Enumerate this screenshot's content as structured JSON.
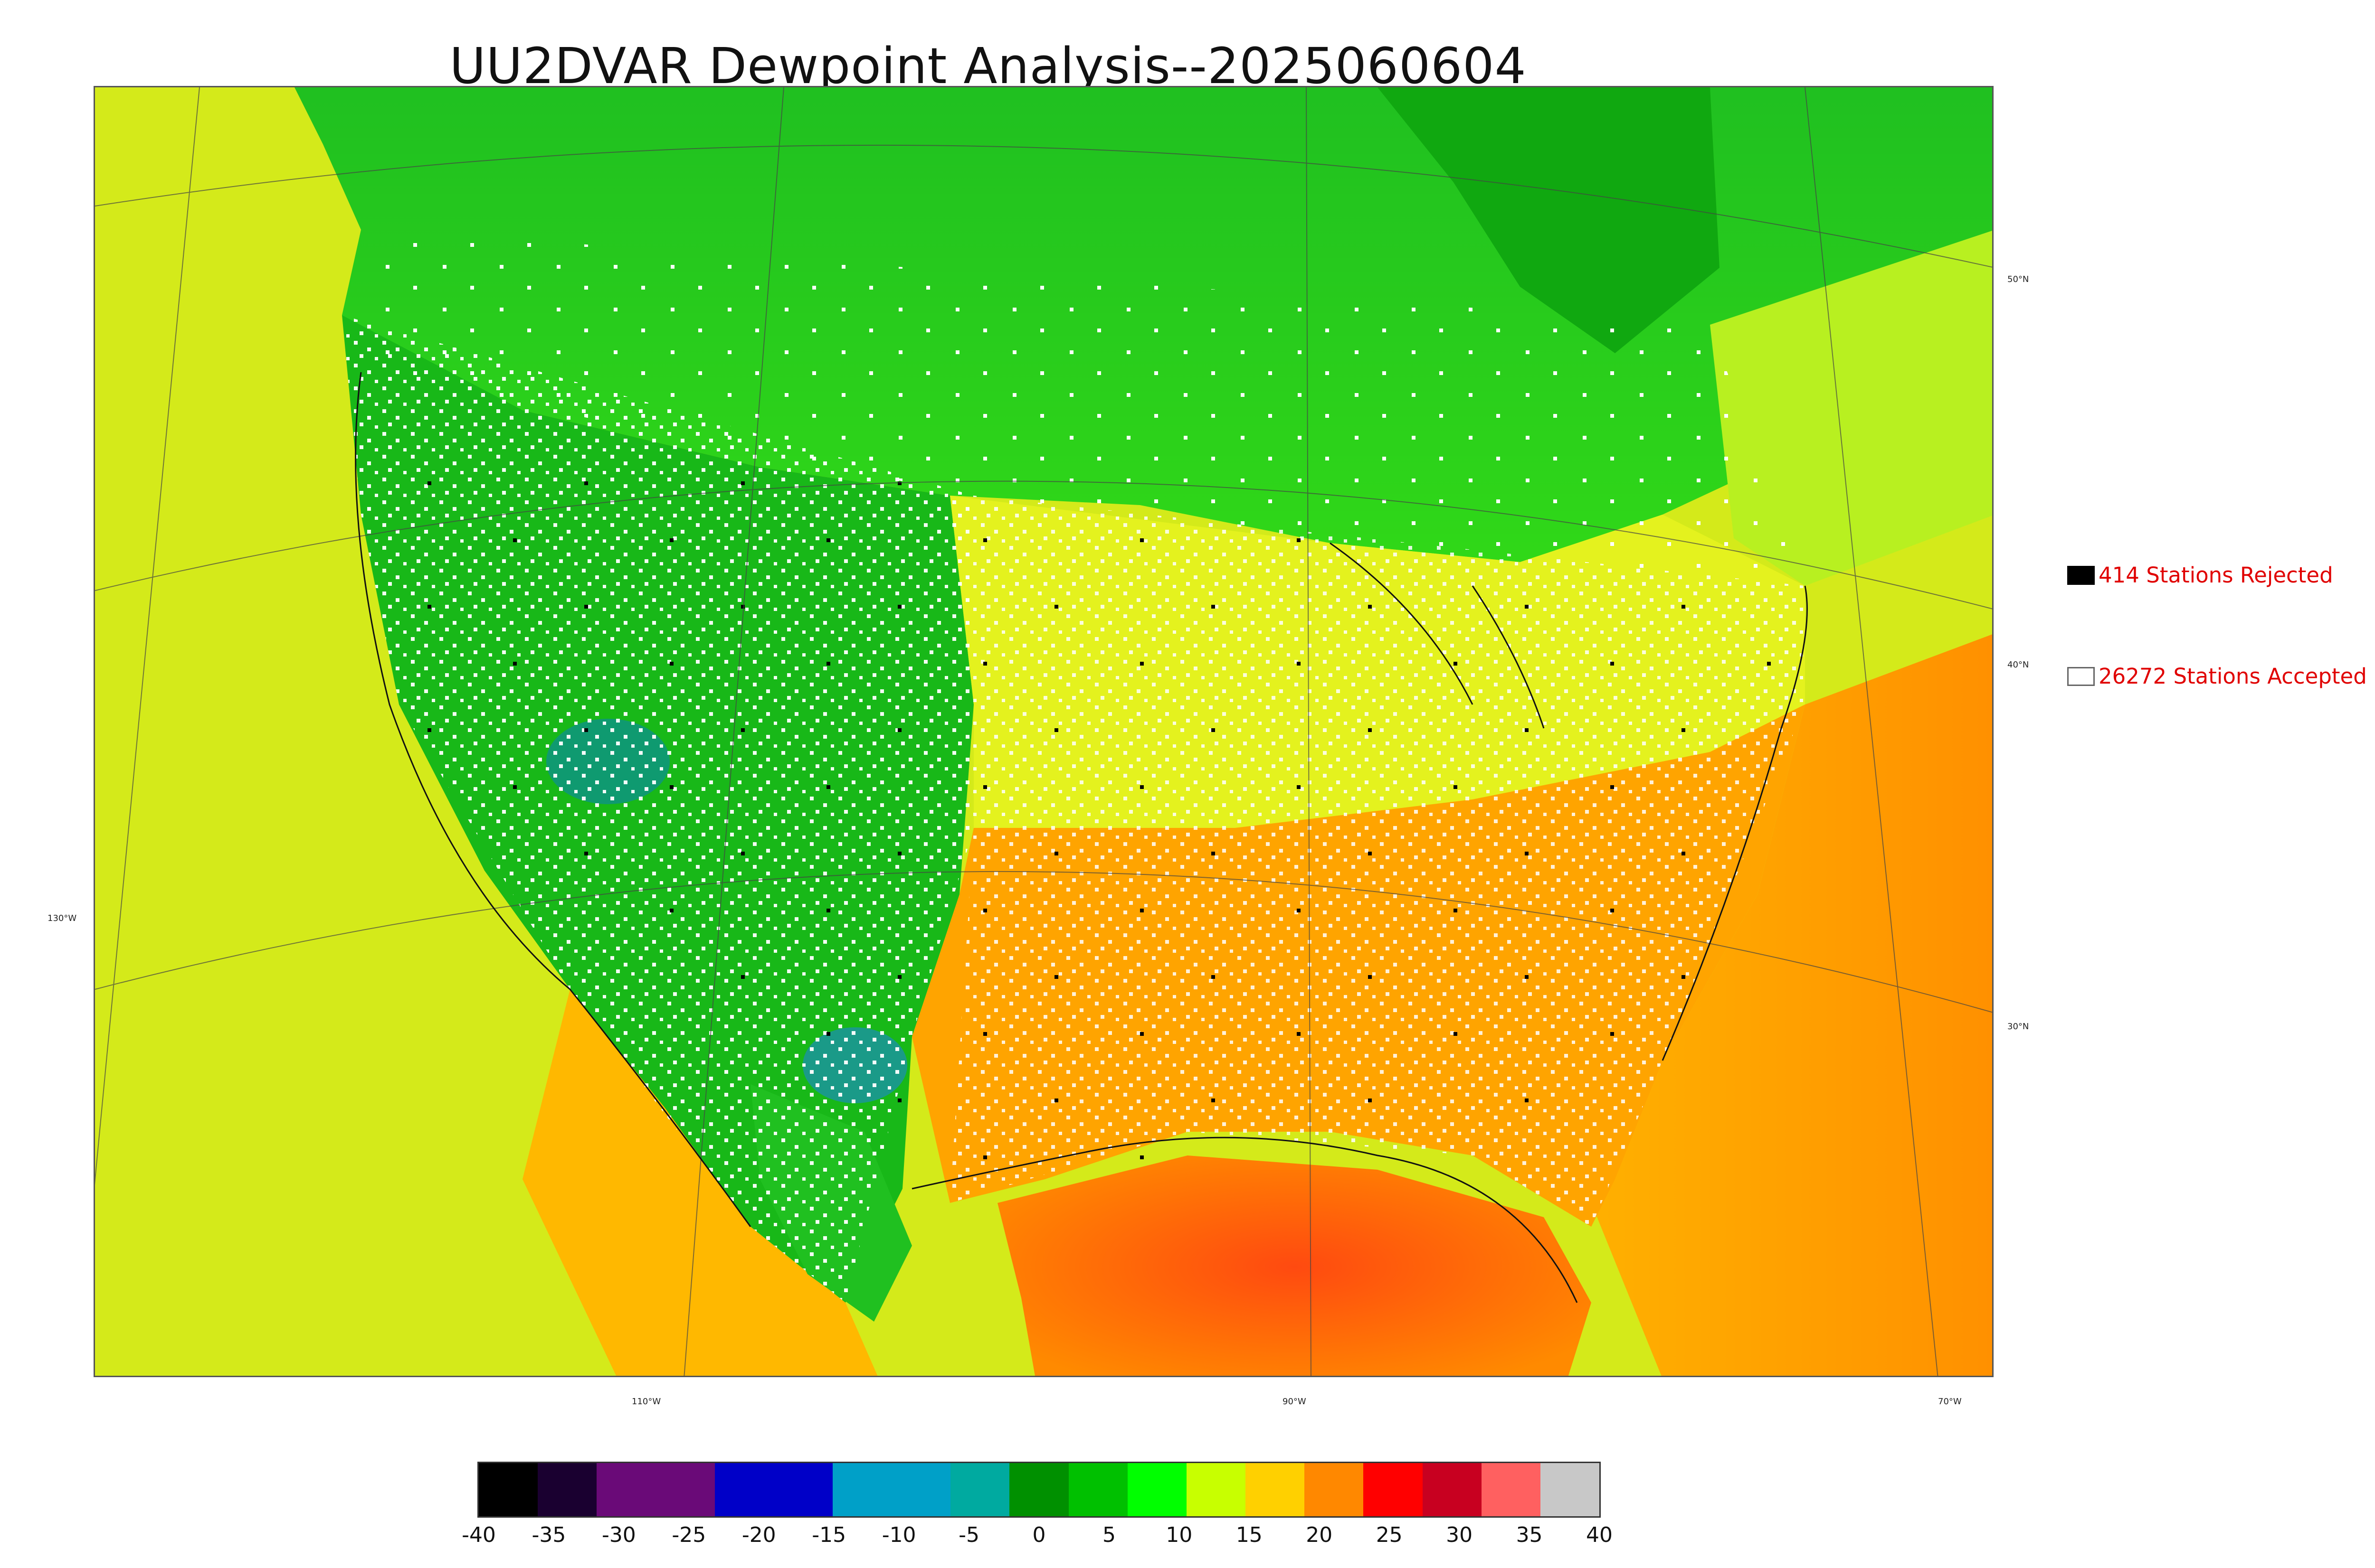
{
  "title": "UU2DVAR Dewpoint Analysis--2025060604",
  "legend": {
    "rejected": {
      "label": "414 Stations Rejected",
      "color": "#000000"
    },
    "accepted": {
      "label": "26272 Stations Accepted",
      "color": "#ffffff"
    }
  },
  "graticule_labels": {
    "lat_50": "50°N",
    "lat_40": "40°N",
    "lat_30": "30°N",
    "lon_130": "130°W",
    "lon_110": "110°W",
    "lon_90": "90°W",
    "lon_70": "70°W"
  },
  "colorbar": {
    "ticks": [
      "-40",
      "-35",
      "-30",
      "-25",
      "-20",
      "-15",
      "-10",
      "-5",
      "0",
      "5",
      "10",
      "15",
      "20",
      "25",
      "30",
      "35",
      "40"
    ],
    "colors": [
      "#000000",
      "#1a0030",
      "#6a0a78",
      "#6a0a78",
      "#0000c8",
      "#0000c8",
      "#00a0c8",
      "#00a0c8",
      "#00aaa0",
      "#009000",
      "#00c000",
      "#00ff00",
      "#c8ff00",
      "#ffd000",
      "#ff8800",
      "#ff0000",
      "#c80020",
      "#ff6060",
      "#c8c8c8"
    ]
  },
  "field_colors": {
    "ocean_pacific": "#d6ea18",
    "ocean_atlantic": "#ffa000",
    "gulf": "#ff5a10",
    "west_green": "#18b818",
    "canada_green": "#30cc20",
    "plains_yellow": "#e8f020",
    "southeast_orange": "#ff9a00"
  }
}
